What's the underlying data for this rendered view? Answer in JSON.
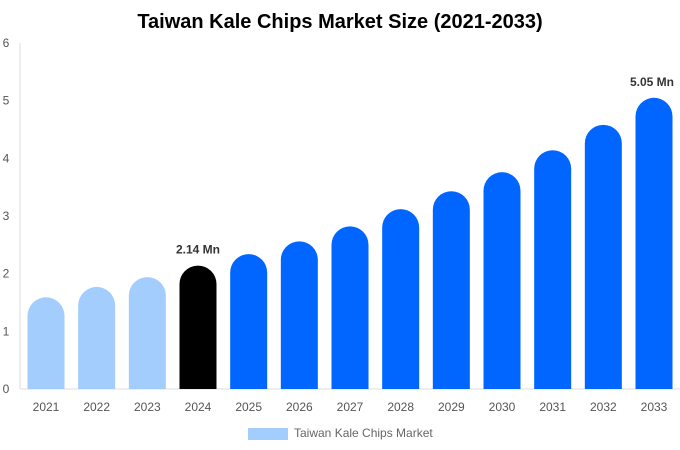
{
  "chart_data": {
    "type": "bar",
    "title": "Taiwan Kale Chips Market Size (2021-2033)",
    "categories": [
      "2021",
      "2022",
      "2023",
      "2024",
      "2025",
      "2026",
      "2027",
      "2028",
      "2029",
      "2030",
      "2031",
      "2032",
      "2033"
    ],
    "series": [
      {
        "name": "Taiwan Kale Chips Market",
        "values": [
          1.59,
          1.77,
          1.94,
          2.14,
          2.34,
          2.56,
          2.82,
          3.12,
          3.43,
          3.76,
          4.14,
          4.58,
          5.05
        ]
      }
    ],
    "annotations": [
      {
        "index": 3,
        "text": "2.14 Mn"
      },
      {
        "index": 12,
        "text": "5.05 Mn"
      }
    ],
    "yticks": [
      "0",
      "1",
      "2",
      "3",
      "4",
      "5",
      "6"
    ],
    "ylim": [
      0,
      6
    ],
    "xlabel": "",
    "ylabel": "",
    "legend": "bottom",
    "colors": {
      "historical": "#a3cdfc",
      "current": "#000000",
      "forecast": "#0066ff",
      "legend": "#a3cdfc"
    }
  }
}
